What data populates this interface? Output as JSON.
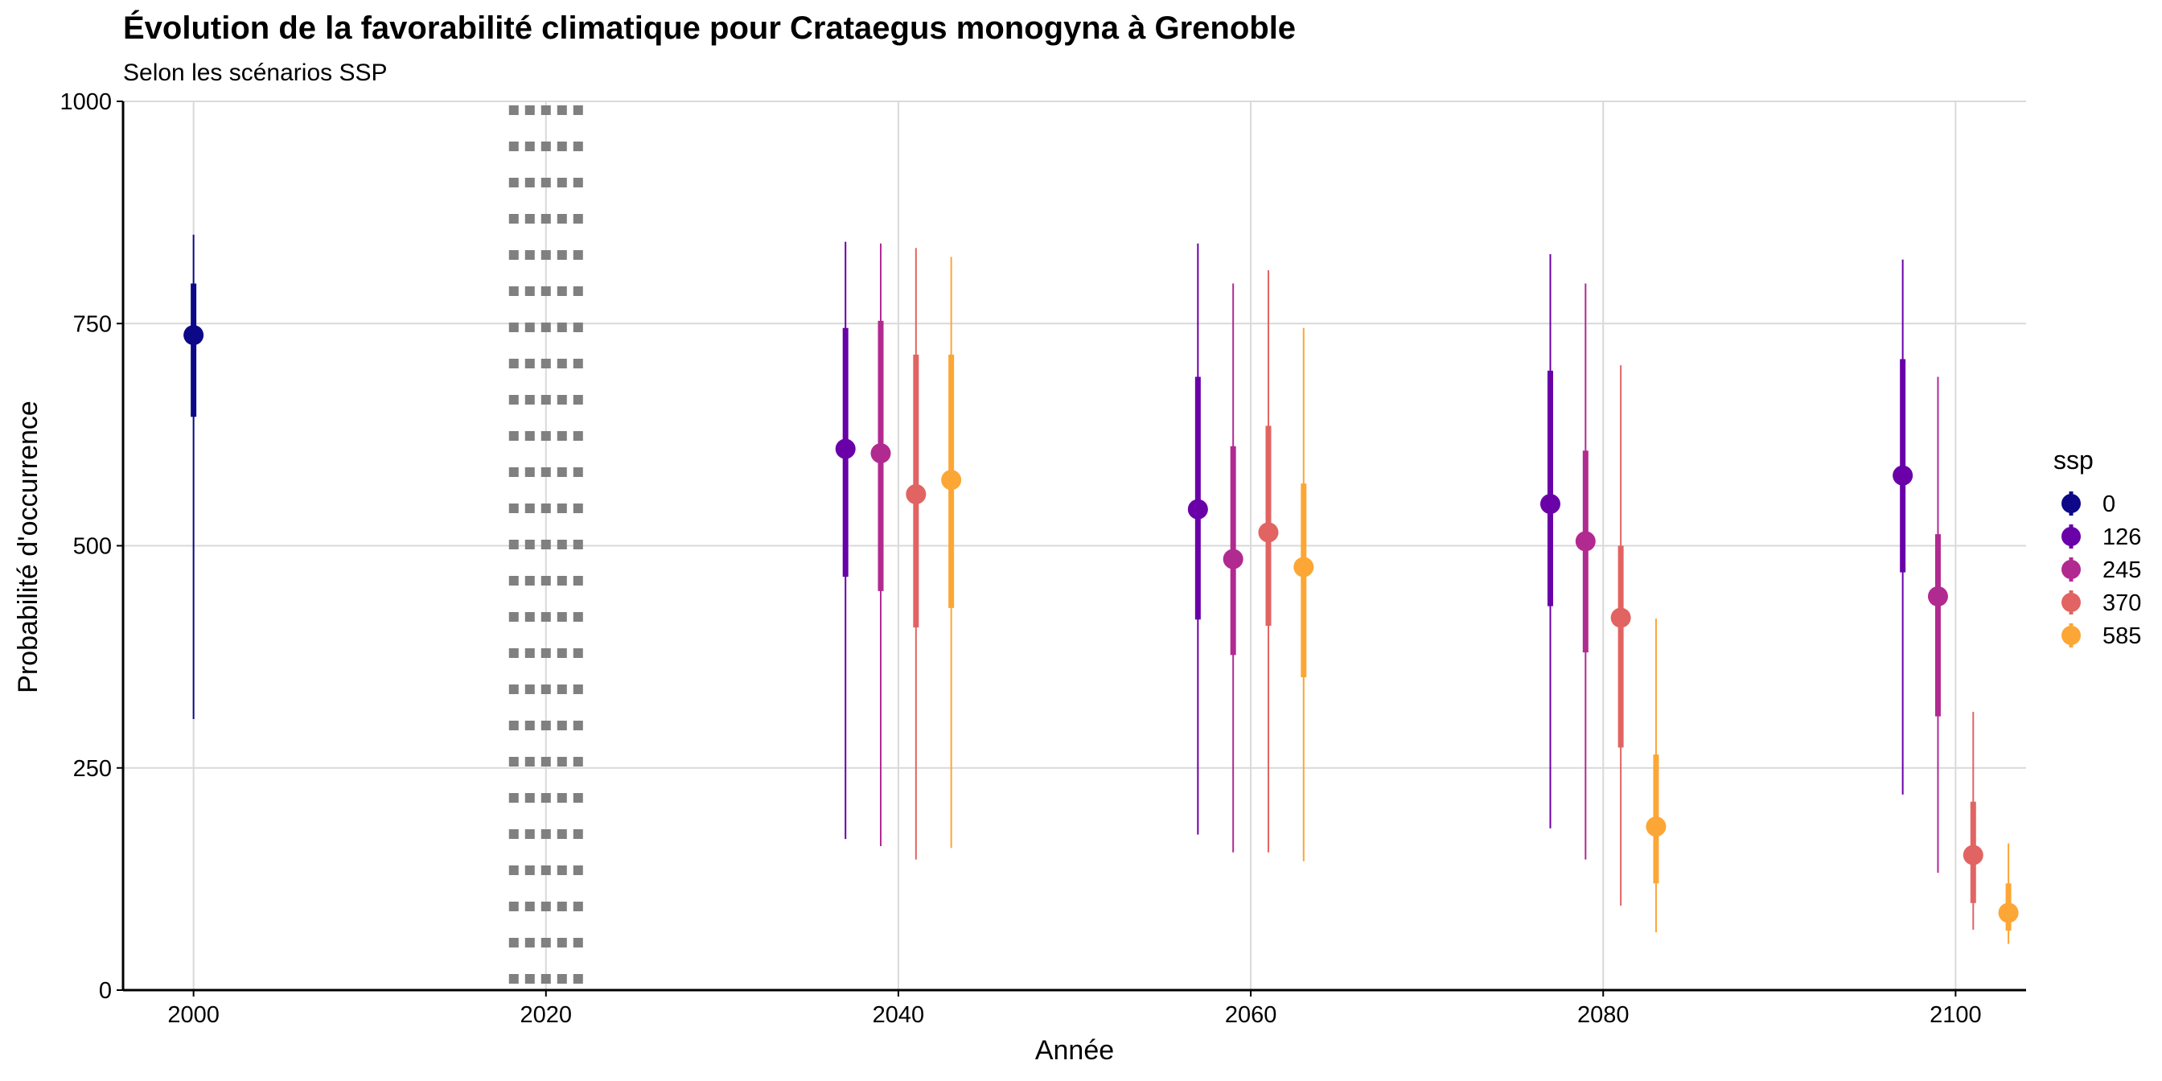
{
  "chart_data": {
    "type": "pointrange",
    "title": "Évolution de la favorabilité climatique pour Crataegus monogyna à Grenoble",
    "subtitle": "Selon les scénarios SSP",
    "xlabel": "Année",
    "ylabel": "Probabilité d'occurrence",
    "xlim": [
      1996,
      2104
    ],
    "ylim": [
      0,
      1000
    ],
    "x_ticks": [
      2000,
      2020,
      2040,
      2060,
      2080,
      2100
    ],
    "y_ticks": [
      0,
      250,
      500,
      750,
      1000
    ],
    "grid": true,
    "reference_line": {
      "x": 2020,
      "style": "dotted",
      "color": "#808080"
    },
    "legend": {
      "title": "ssp",
      "placement": "right"
    },
    "series": [
      {
        "name": "0",
        "color": "#0D0887",
        "points": [
          {
            "x": 2000,
            "y": 737,
            "inner": [
              645,
              795
            ],
            "outer": [
              305,
              850
            ]
          }
        ]
      },
      {
        "name": "126",
        "color": "#6A00A8",
        "points": [
          {
            "x": 2037,
            "y": 609,
            "inner": [
              465,
              745
            ],
            "outer": [
              170,
              842
            ]
          },
          {
            "x": 2057,
            "y": 541,
            "inner": [
              417,
              690
            ],
            "outer": [
              175,
              840
            ]
          },
          {
            "x": 2077,
            "y": 547,
            "inner": [
              432,
              697
            ],
            "outer": [
              182,
              828
            ]
          },
          {
            "x": 2097,
            "y": 579,
            "inner": [
              470,
              710
            ],
            "outer": [
              220,
              822
            ]
          }
        ]
      },
      {
        "name": "245",
        "color": "#B12A90",
        "points": [
          {
            "x": 2039,
            "y": 604,
            "inner": [
              449,
              753
            ],
            "outer": [
              162,
              840
            ]
          },
          {
            "x": 2059,
            "y": 485,
            "inner": [
              377,
              612
            ],
            "outer": [
              155,
              795
            ]
          },
          {
            "x": 2079,
            "y": 505,
            "inner": [
              380,
              607
            ],
            "outer": [
              147,
              795
            ]
          },
          {
            "x": 2099,
            "y": 443,
            "inner": [
              308,
              513
            ],
            "outer": [
              132,
              690
            ]
          }
        ]
      },
      {
        "name": "370",
        "color": "#E16462",
        "points": [
          {
            "x": 2041,
            "y": 558,
            "inner": [
              408,
              715
            ],
            "outer": [
              147,
              835
            ]
          },
          {
            "x": 2061,
            "y": 515,
            "inner": [
              410,
              635
            ],
            "outer": [
              155,
              810
            ]
          },
          {
            "x": 2081,
            "y": 419,
            "inner": [
              273,
              500
            ],
            "outer": [
              95,
              703
            ]
          },
          {
            "x": 2101,
            "y": 152,
            "inner": [
              98,
              212
            ],
            "outer": [
              68,
              313
            ]
          }
        ]
      },
      {
        "name": "585",
        "color": "#FCA636",
        "points": [
          {
            "x": 2043,
            "y": 574,
            "inner": [
              430,
              715
            ],
            "outer": [
              160,
              825
            ]
          },
          {
            "x": 2063,
            "y": 476,
            "inner": [
              352,
              570
            ],
            "outer": [
              145,
              745
            ]
          },
          {
            "x": 2083,
            "y": 184,
            "inner": [
              120,
              265
            ],
            "outer": [
              65,
              418
            ]
          },
          {
            "x": 2103,
            "y": 87,
            "inner": [
              67,
              120
            ],
            "outer": [
              52,
              165
            ]
          }
        ]
      }
    ]
  }
}
